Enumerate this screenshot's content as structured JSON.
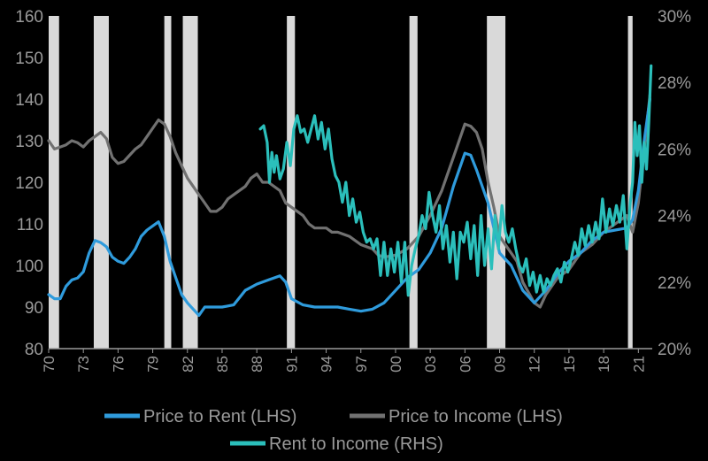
{
  "chart_data": {
    "type": "line",
    "title": "",
    "xlabel": "",
    "ylabel_left": "",
    "ylabel_right": "",
    "x_range": [
      1970,
      2022.2
    ],
    "x_ticks": [
      {
        "value": 1970,
        "label": "70"
      },
      {
        "value": 1973,
        "label": "73"
      },
      {
        "value": 1976,
        "label": "76"
      },
      {
        "value": 1979,
        "label": "79"
      },
      {
        "value": 1982,
        "label": "82"
      },
      {
        "value": 1985,
        "label": "85"
      },
      {
        "value": 1988,
        "label": "88"
      },
      {
        "value": 1991,
        "label": "91"
      },
      {
        "value": 1994,
        "label": "94"
      },
      {
        "value": 1997,
        "label": "97"
      },
      {
        "value": 2000,
        "label": "00"
      },
      {
        "value": 2003,
        "label": "03"
      },
      {
        "value": 2006,
        "label": "06"
      },
      {
        "value": 2009,
        "label": "09"
      },
      {
        "value": 2012,
        "label": "12"
      },
      {
        "value": 2015,
        "label": "15"
      },
      {
        "value": 2018,
        "label": "18"
      },
      {
        "value": 2021,
        "label": "21"
      }
    ],
    "y_left": {
      "range": [
        80,
        160
      ],
      "ticks": [
        80,
        90,
        100,
        110,
        120,
        130,
        140,
        150,
        160
      ]
    },
    "y_right": {
      "range": [
        0.2,
        0.3
      ],
      "ticks": [
        {
          "value": 0.2,
          "label": "20%"
        },
        {
          "value": 0.22,
          "label": "22%"
        },
        {
          "value": 0.24,
          "label": "24%"
        },
        {
          "value": 0.26,
          "label": "26%"
        },
        {
          "value": 0.28,
          "label": "28%"
        },
        {
          "value": 0.3,
          "label": "30%"
        }
      ]
    },
    "grid": false,
    "legend_position": "bottom",
    "recessions": [
      [
        1970.0,
        1970.9
      ],
      [
        1973.9,
        1975.2
      ],
      [
        1980.0,
        1980.6
      ],
      [
        1981.6,
        1982.9
      ],
      [
        1990.6,
        1991.3
      ],
      [
        2001.2,
        2001.9
      ],
      [
        2007.9,
        2009.5
      ],
      [
        2020.1,
        2020.5
      ]
    ],
    "series": [
      {
        "name": "Price to Rent (LHS)",
        "axis": "left",
        "color": "#2f9bdc",
        "points": [
          [
            1970,
            93
          ],
          [
            1970.5,
            92
          ],
          [
            1971,
            92
          ],
          [
            1971.5,
            95
          ],
          [
            1972,
            96.5
          ],
          [
            1972.5,
            97
          ],
          [
            1973,
            98.5
          ],
          [
            1973.5,
            103
          ],
          [
            1974,
            106
          ],
          [
            1974.5,
            105.5
          ],
          [
            1975,
            104.5
          ],
          [
            1975.5,
            102
          ],
          [
            1976,
            101
          ],
          [
            1976.5,
            100.5
          ],
          [
            1977,
            102
          ],
          [
            1977.5,
            104
          ],
          [
            1978,
            107
          ],
          [
            1978.5,
            108.5
          ],
          [
            1979,
            109.5
          ],
          [
            1979.5,
            110.5
          ],
          [
            1980,
            107
          ],
          [
            1980.5,
            101
          ],
          [
            1981,
            97
          ],
          [
            1981.5,
            93
          ],
          [
            1982,
            91
          ],
          [
            1982.5,
            89.5
          ],
          [
            1983,
            88
          ],
          [
            1983.5,
            90
          ],
          [
            1984,
            90
          ],
          [
            1985,
            90
          ],
          [
            1986,
            90.5
          ],
          [
            1987,
            94
          ],
          [
            1988,
            95.5
          ],
          [
            1989,
            96.5
          ],
          [
            1990,
            97.5
          ],
          [
            1990.5,
            96
          ],
          [
            1991,
            92
          ],
          [
            1992,
            90.5
          ],
          [
            1993,
            90
          ],
          [
            1994,
            90
          ],
          [
            1995,
            90
          ],
          [
            1996,
            89.5
          ],
          [
            1997,
            89
          ],
          [
            1998,
            89.5
          ],
          [
            1999,
            91
          ],
          [
            2000,
            94
          ],
          [
            2001,
            97
          ],
          [
            2002,
            99
          ],
          [
            2003,
            103
          ],
          [
            2004,
            109
          ],
          [
            2005,
            119
          ],
          [
            2006,
            127
          ],
          [
            2006.5,
            126.5
          ],
          [
            2007,
            123
          ],
          [
            2008,
            115
          ],
          [
            2008.5,
            109
          ],
          [
            2009,
            103
          ],
          [
            2010,
            100
          ],
          [
            2011,
            94
          ],
          [
            2012,
            91
          ],
          [
            2013,
            94
          ],
          [
            2014,
            98
          ],
          [
            2015,
            101
          ],
          [
            2016,
            103
          ],
          [
            2017,
            106
          ],
          [
            2018,
            108
          ],
          [
            2019,
            108.5
          ],
          [
            2020,
            109
          ],
          [
            2020.5,
            111
          ],
          [
            2021,
            118
          ],
          [
            2021.5,
            130
          ],
          [
            2022,
            140
          ]
        ]
      },
      {
        "name": "Price to Income (LHS)",
        "axis": "left",
        "color": "#717171",
        "points": [
          [
            1970,
            130
          ],
          [
            1970.5,
            128
          ],
          [
            1971,
            128.5
          ],
          [
            1971.5,
            129
          ],
          [
            1972,
            130
          ],
          [
            1972.5,
            129.5
          ],
          [
            1973,
            128.5
          ],
          [
            1973.5,
            130
          ],
          [
            1974,
            131
          ],
          [
            1974.5,
            132
          ],
          [
            1975,
            130.5
          ],
          [
            1975.5,
            126
          ],
          [
            1976,
            124.5
          ],
          [
            1976.5,
            125
          ],
          [
            1977,
            126.5
          ],
          [
            1977.5,
            128
          ],
          [
            1978,
            129
          ],
          [
            1978.5,
            131
          ],
          [
            1979,
            133
          ],
          [
            1979.5,
            135
          ],
          [
            1980,
            134
          ],
          [
            1980.5,
            131
          ],
          [
            1981,
            127
          ],
          [
            1981.5,
            124
          ],
          [
            1982,
            121
          ],
          [
            1982.5,
            119
          ],
          [
            1983,
            117
          ],
          [
            1983.5,
            115
          ],
          [
            1984,
            113
          ],
          [
            1984.5,
            113
          ],
          [
            1985,
            114
          ],
          [
            1985.5,
            116
          ],
          [
            1986,
            117
          ],
          [
            1987,
            119
          ],
          [
            1987.5,
            121
          ],
          [
            1988,
            122
          ],
          [
            1988.5,
            120
          ],
          [
            1989,
            120
          ],
          [
            1990,
            118
          ],
          [
            1990.5,
            115
          ],
          [
            1991,
            114
          ],
          [
            1992,
            112
          ],
          [
            1992.5,
            110
          ],
          [
            1993,
            109
          ],
          [
            1994,
            109
          ],
          [
            1994.5,
            108
          ],
          [
            1995,
            108
          ],
          [
            1996,
            107
          ],
          [
            1997,
            105
          ],
          [
            1998,
            104
          ],
          [
            1998.5,
            102.5
          ],
          [
            1999,
            102
          ],
          [
            2000,
            102.5
          ],
          [
            2001,
            104
          ],
          [
            2002,
            107
          ],
          [
            2003,
            112
          ],
          [
            2004,
            118
          ],
          [
            2005,
            126
          ],
          [
            2006,
            134
          ],
          [
            2006.5,
            133.5
          ],
          [
            2007,
            132
          ],
          [
            2007.5,
            128
          ],
          [
            2008,
            120
          ],
          [
            2008.5,
            114
          ],
          [
            2009,
            107
          ],
          [
            2010,
            103
          ],
          [
            2010.5,
            101
          ],
          [
            2011,
            96
          ],
          [
            2012,
            91
          ],
          [
            2012.5,
            90
          ],
          [
            2013,
            93
          ],
          [
            2014,
            97
          ],
          [
            2015,
            99
          ],
          [
            2016,
            103
          ],
          [
            2017,
            105
          ],
          [
            2018,
            108
          ],
          [
            2019,
            110
          ],
          [
            2020,
            112
          ],
          [
            2020.5,
            108
          ],
          [
            2021,
            115
          ],
          [
            2021.5,
            128
          ],
          [
            2022,
            141
          ]
        ]
      },
      {
        "name": "Rent to Income (RHS)",
        "axis": "right",
        "color": "#2bbfbb",
        "points": [
          [
            1988.3,
            0.266
          ],
          [
            1988.6,
            0.267
          ],
          [
            1988.9,
            0.262
          ],
          [
            1989.1,
            0.25
          ],
          [
            1989.3,
            0.259
          ],
          [
            1989.5,
            0.253
          ],
          [
            1989.7,
            0.258
          ],
          [
            1990.0,
            0.251
          ],
          [
            1990.3,
            0.254
          ],
          [
            1990.6,
            0.262
          ],
          [
            1990.9,
            0.255
          ],
          [
            1991.2,
            0.266
          ],
          [
            1991.5,
            0.27
          ],
          [
            1991.8,
            0.265
          ],
          [
            1992.1,
            0.266
          ],
          [
            1992.4,
            0.262
          ],
          [
            1992.7,
            0.266
          ],
          [
            1993.0,
            0.27
          ],
          [
            1993.3,
            0.263
          ],
          [
            1993.6,
            0.268
          ],
          [
            1993.9,
            0.26
          ],
          [
            1994.2,
            0.266
          ],
          [
            1994.5,
            0.257
          ],
          [
            1994.8,
            0.252
          ],
          [
            1995.1,
            0.25
          ],
          [
            1995.4,
            0.244
          ],
          [
            1995.7,
            0.25
          ],
          [
            1996.0,
            0.24
          ],
          [
            1996.3,
            0.245
          ],
          [
            1996.6,
            0.238
          ],
          [
            1996.9,
            0.241
          ],
          [
            1997.2,
            0.235
          ],
          [
            1997.5,
            0.232
          ],
          [
            1997.8,
            0.233
          ],
          [
            1998.1,
            0.23
          ],
          [
            1998.4,
            0.233
          ],
          [
            1998.7,
            0.222
          ],
          [
            1999.0,
            0.232
          ],
          [
            1999.3,
            0.222
          ],
          [
            1999.6,
            0.23
          ],
          [
            1999.9,
            0.223
          ],
          [
            2000.2,
            0.232
          ],
          [
            2000.5,
            0.22
          ],
          [
            2000.8,
            0.232
          ],
          [
            2001.1,
            0.216
          ],
          [
            2001.4,
            0.225
          ],
          [
            2001.7,
            0.23
          ],
          [
            2002.0,
            0.234
          ],
          [
            2002.3,
            0.24
          ],
          [
            2002.6,
            0.236
          ],
          [
            2002.9,
            0.247
          ],
          [
            2003.2,
            0.24
          ],
          [
            2003.5,
            0.235
          ],
          [
            2003.8,
            0.243
          ],
          [
            2004.1,
            0.23
          ],
          [
            2004.4,
            0.237
          ],
          [
            2004.7,
            0.226
          ],
          [
            2005.0,
            0.235
          ],
          [
            2005.3,
            0.221
          ],
          [
            2005.6,
            0.235
          ],
          [
            2005.9,
            0.232
          ],
          [
            2006.2,
            0.238
          ],
          [
            2006.5,
            0.227
          ],
          [
            2006.8,
            0.237
          ],
          [
            2007.1,
            0.222
          ],
          [
            2007.4,
            0.24
          ],
          [
            2007.7,
            0.225
          ],
          [
            2008.0,
            0.236
          ],
          [
            2008.3,
            0.224
          ],
          [
            2008.6,
            0.24
          ],
          [
            2008.9,
            0.23
          ],
          [
            2009.2,
            0.243
          ],
          [
            2009.5,
            0.235
          ],
          [
            2009.8,
            0.232
          ],
          [
            2010.1,
            0.236
          ],
          [
            2010.4,
            0.23
          ],
          [
            2010.7,
            0.225
          ],
          [
            2011.0,
            0.223
          ],
          [
            2011.3,
            0.227
          ],
          [
            2011.6,
            0.219
          ],
          [
            2011.9,
            0.223
          ],
          [
            2012.2,
            0.217
          ],
          [
            2012.5,
            0.222
          ],
          [
            2012.8,
            0.217
          ],
          [
            2013.1,
            0.221
          ],
          [
            2013.4,
            0.219
          ],
          [
            2013.7,
            0.222
          ],
          [
            2014.0,
            0.224
          ],
          [
            2014.3,
            0.22
          ],
          [
            2014.6,
            0.226
          ],
          [
            2014.9,
            0.223
          ],
          [
            2015.2,
            0.227
          ],
          [
            2015.5,
            0.232
          ],
          [
            2015.8,
            0.228
          ],
          [
            2016.1,
            0.236
          ],
          [
            2016.4,
            0.231
          ],
          [
            2016.7,
            0.237
          ],
          [
            2017.0,
            0.232
          ],
          [
            2017.3,
            0.238
          ],
          [
            2017.6,
            0.233
          ],
          [
            2017.9,
            0.245
          ],
          [
            2018.2,
            0.235
          ],
          [
            2018.5,
            0.242
          ],
          [
            2018.8,
            0.237
          ],
          [
            2019.1,
            0.243
          ],
          [
            2019.4,
            0.238
          ],
          [
            2019.7,
            0.246
          ],
          [
            2020.0,
            0.23
          ],
          [
            2020.3,
            0.244
          ],
          [
            2020.5,
            0.25
          ],
          [
            2020.7,
            0.268
          ],
          [
            2020.9,
            0.258
          ],
          [
            2021.1,
            0.267
          ],
          [
            2021.3,
            0.25
          ],
          [
            2021.5,
            0.262
          ],
          [
            2021.7,
            0.254
          ],
          [
            2021.9,
            0.268
          ],
          [
            2022.1,
            0.285
          ]
        ]
      }
    ]
  }
}
